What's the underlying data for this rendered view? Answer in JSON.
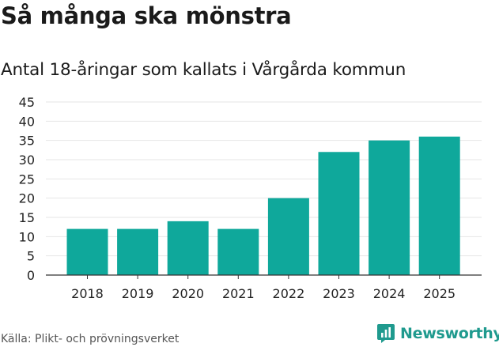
{
  "header": {
    "title": "Så många ska mönstra",
    "subtitle": "Antal 18-åringar som kallats i Vårgårda kommun"
  },
  "footer": {
    "source": "Källa: Plikt- och prövningsverket",
    "brand": "Newsworthy"
  },
  "colors": {
    "bar": "#0fa89b",
    "grid": "#e6e6e6",
    "axis": "#333333",
    "brand": "#1f9a8e"
  },
  "chart_data": {
    "type": "bar",
    "title": "Så många ska mönstra",
    "subtitle": "Antal 18-åringar som kallats i Vårgårda kommun",
    "xlabel": "",
    "ylabel": "",
    "categories": [
      "2018",
      "2019",
      "2020",
      "2021",
      "2022",
      "2023",
      "2024",
      "2025"
    ],
    "values": [
      12,
      12,
      14,
      12,
      20,
      32,
      35,
      36
    ],
    "ylim": [
      0,
      45
    ],
    "yticks": [
      0,
      5,
      10,
      15,
      20,
      25,
      30,
      35,
      40,
      45
    ],
    "grid": true,
    "legend": "none"
  }
}
